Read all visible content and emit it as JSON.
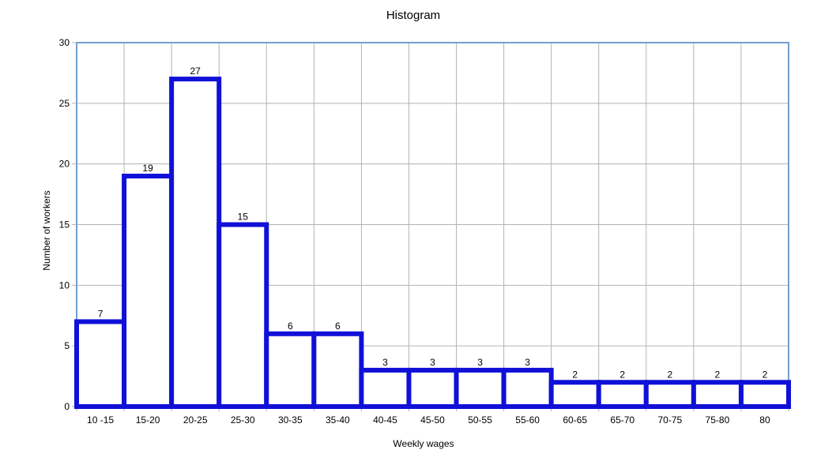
{
  "chart_data": {
    "type": "bar",
    "title": "Histogram",
    "xlabel": "Weekly wages",
    "ylabel": "Number of workers",
    "categories": [
      "10 -15",
      "15-20",
      "20-25",
      "25-30",
      "30-35",
      "35-40",
      "40-45",
      "45-50",
      "50-55",
      "55-60",
      "60-65",
      "65-70",
      "70-75",
      "75-80",
      "80"
    ],
    "values": [
      7,
      19,
      27,
      15,
      6,
      6,
      3,
      3,
      3,
      3,
      2,
      2,
      2,
      2,
      2
    ],
    "data_labels": [
      "7",
      "19",
      "27",
      "15",
      "6",
      "6",
      "3",
      "3",
      "3",
      "3",
      "2",
      "2",
      "2",
      "2",
      "2"
    ],
    "ylim": [
      0,
      30
    ],
    "yticks": [
      0,
      5,
      10,
      15,
      20,
      25,
      30
    ],
    "ytick_labels": [
      "0",
      "5",
      "10",
      "15",
      "20",
      "25",
      "30"
    ],
    "grid": true,
    "legend": "none",
    "bar_fill": "#ffffff",
    "bar_stroke": "#1010d8",
    "grid_color": "#b3b3b3",
    "plot_border_color": "#729fcf"
  }
}
